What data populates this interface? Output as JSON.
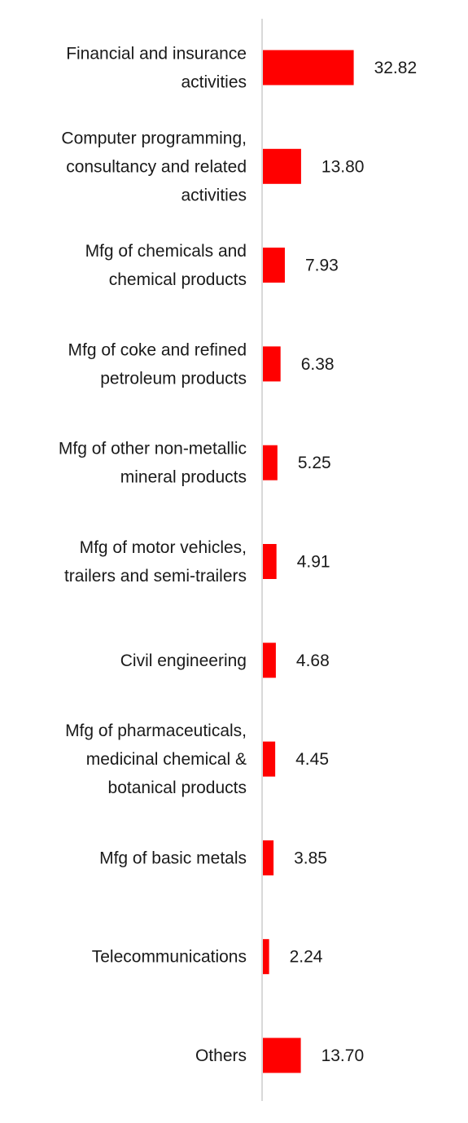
{
  "chart_data": {
    "type": "bar",
    "orientation": "horizontal",
    "categories": [
      [
        "Financial and insurance",
        "activities"
      ],
      [
        "Computer programming,",
        "consultancy and related",
        "activities"
      ],
      [
        "Mfg of chemicals and",
        "chemical products"
      ],
      [
        "Mfg of coke and refined",
        "petroleum products"
      ],
      [
        "Mfg of other non-metallic",
        "mineral products"
      ],
      [
        "Mfg of motor vehicles,",
        "trailers and semi-trailers"
      ],
      [
        "Civil engineering"
      ],
      [
        "Mfg of pharmaceuticals,",
        "medicinal chemical &",
        "botanical products"
      ],
      [
        "Mfg of basic metals"
      ],
      [
        "Telecommunications"
      ],
      [
        "Others"
      ]
    ],
    "values": [
      32.82,
      13.8,
      7.93,
      6.38,
      5.25,
      4.91,
      4.68,
      4.45,
      3.85,
      2.24,
      13.7
    ],
    "value_labels": [
      "32.82",
      "13.80",
      "7.93",
      "6.38",
      "5.25",
      "4.91",
      "4.68",
      "4.45",
      "3.85",
      "2.24",
      "13.70"
    ],
    "xlim": [
      0,
      100
    ],
    "grid": false,
    "legend": "none",
    "bar_color": "#ff0000",
    "axis_color": "#d9d9d9"
  }
}
